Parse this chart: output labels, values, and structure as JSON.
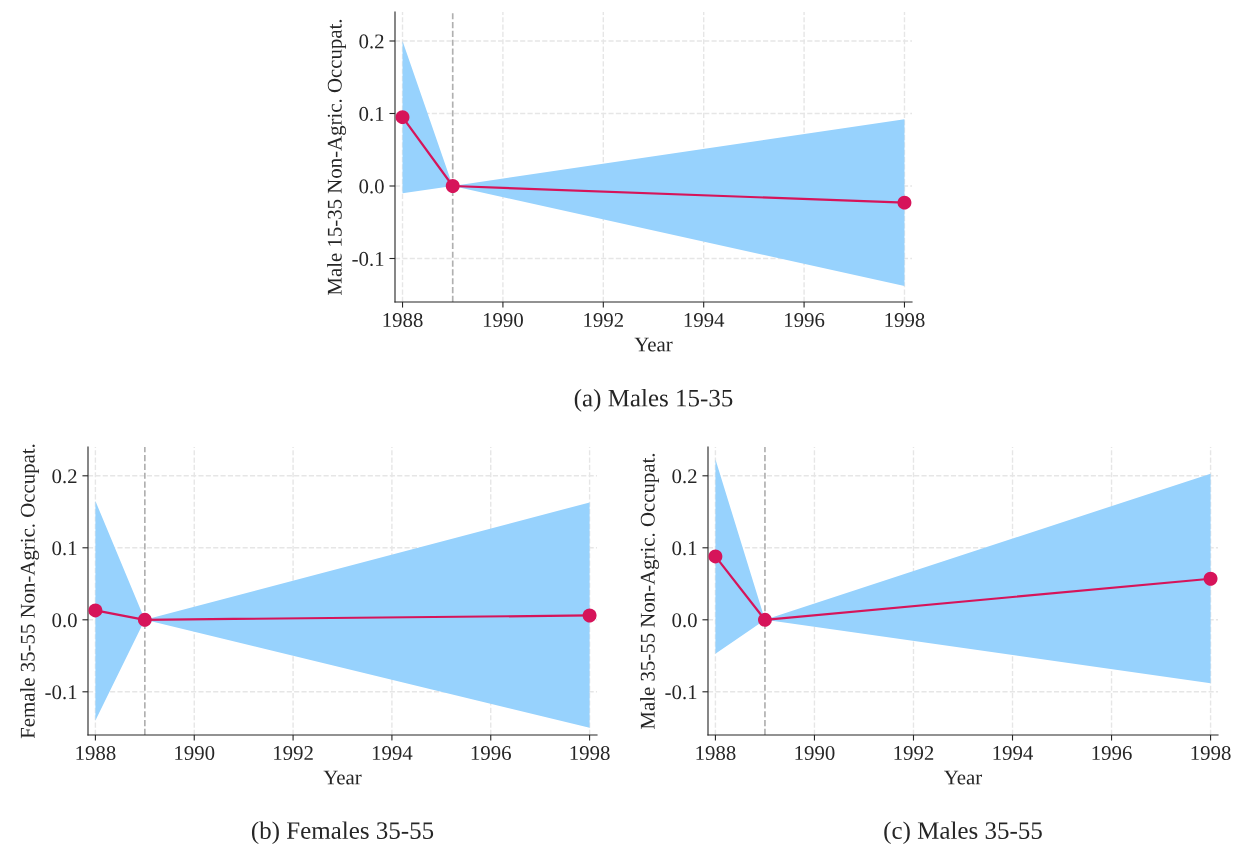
{
  "chart_data": [
    {
      "type": "line",
      "title": "(a) Males 15-35",
      "xlabel": "Year",
      "ylabel": "Male 15-35 Non-Agric. Occupat.",
      "x": [
        1988,
        1989,
        1998
      ],
      "xlim": [
        1987.85,
        1998.15
      ],
      "xticks": [
        1988,
        1990,
        1992,
        1994,
        1996,
        1998
      ],
      "ylim": [
        -0.16,
        0.24
      ],
      "yticks": [
        {
          "value": -0.1,
          "label": "-0.1"
        },
        {
          "value": 0,
          "label": "0.0"
        },
        {
          "value": 0.1,
          "label": "0.1"
        },
        {
          "value": 0.2,
          "label": "0.2"
        }
      ],
      "grid": true,
      "marker": "circle",
      "line_style": "solid",
      "ref_lines": [
        {
          "axis": "x",
          "value": 1989,
          "color": "#b0b0b0",
          "line_style": "dashed"
        }
      ],
      "series": [
        {
          "color": "#d6145a",
          "values": [
            0.095,
            0,
            -0.023
          ],
          "lower": [
            -0.01,
            0,
            -0.138
          ],
          "upper": [
            0.2,
            0,
            0.092
          ]
        }
      ]
    },
    {
      "type": "line",
      "title": "(b) Females 35-55",
      "xlabel": "Year",
      "ylabel": "Female 35-55 Non-Agric. Occupat.",
      "x": [
        1988,
        1989,
        1998
      ],
      "xlim": [
        1987.85,
        1998.15
      ],
      "xticks": [
        1988,
        1990,
        1992,
        1994,
        1996,
        1998
      ],
      "ylim": [
        -0.16,
        0.24
      ],
      "yticks": [
        {
          "value": -0.1,
          "label": "-0.1"
        },
        {
          "value": 0,
          "label": "0.0"
        },
        {
          "value": 0.1,
          "label": "0.1"
        },
        {
          "value": 0.2,
          "label": "0.2"
        }
      ],
      "grid": true,
      "marker": "circle",
      "line_style": "solid",
      "ref_lines": [
        {
          "axis": "x",
          "value": 1989,
          "color": "#b0b0b0",
          "line_style": "dashed"
        }
      ],
      "series": [
        {
          "color": "#d6145a",
          "values": [
            0.013,
            0,
            0.006
          ],
          "lower": [
            -0.14,
            0,
            -0.15
          ],
          "upper": [
            0.165,
            0,
            0.163
          ]
        }
      ]
    },
    {
      "type": "line",
      "title": "(c) Males 35-55",
      "xlabel": "Year",
      "ylabel": "Male 35-55 Non-Agric. Occupat.",
      "x": [
        1988,
        1989,
        1998
      ],
      "xlim": [
        1987.85,
        1998.15
      ],
      "xticks": [
        1988,
        1990,
        1992,
        1994,
        1996,
        1998
      ],
      "ylim": [
        -0.16,
        0.24
      ],
      "yticks": [
        {
          "value": -0.1,
          "label": "-0.1"
        },
        {
          "value": 0,
          "label": "0.0"
        },
        {
          "value": 0.1,
          "label": "0.1"
        },
        {
          "value": 0.2,
          "label": "0.2"
        }
      ],
      "grid": true,
      "marker": "circle",
      "line_style": "solid",
      "ref_lines": [
        {
          "axis": "x",
          "value": 1989,
          "color": "#b0b0b0",
          "line_style": "dashed"
        }
      ],
      "series": [
        {
          "color": "#d6145a",
          "values": [
            0.088,
            0,
            0.057
          ],
          "lower": [
            -0.047,
            0,
            -0.088
          ],
          "upper": [
            0.223,
            0,
            0.203
          ]
        }
      ]
    }
  ]
}
